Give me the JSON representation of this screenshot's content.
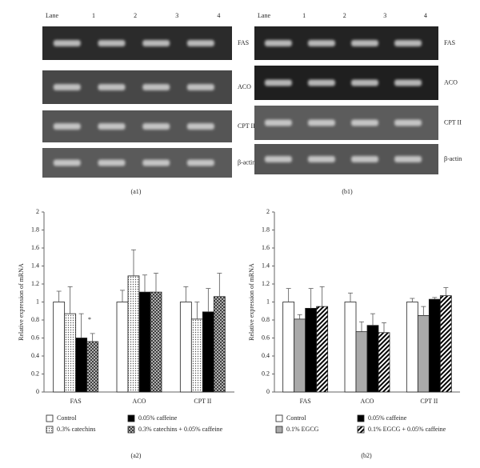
{
  "gels": [
    {
      "label": "(a1)",
      "lane_header": "Lane",
      "lanes": [
        "1",
        "2",
        "3",
        "4"
      ],
      "genes": [
        "FAS",
        "ACO",
        "CPT II",
        "β-actin"
      ]
    },
    {
      "label": "(b1)",
      "lane_header": "Lane",
      "lanes": [
        "1",
        "2",
        "3",
        "4"
      ],
      "genes": [
        "FAS",
        "ACO",
        "CPT II",
        "β-actin"
      ]
    }
  ],
  "chart_data": [
    {
      "type": "bar",
      "label": "(a2)",
      "y_label": "Relative expression of mRNA",
      "categories": [
        "FAS",
        "ACO",
        "CPT II"
      ],
      "ylim": [
        0,
        2
      ],
      "yticks": [
        0,
        0.2,
        0.4,
        0.6,
        0.8,
        1,
        1.2,
        1.4,
        1.6,
        1.8,
        2
      ],
      "annotations": [
        {
          "text": "*"
        }
      ],
      "series": [
        {
          "name": "Control",
          "color": "#ffffff",
          "pattern": "none",
          "values": [
            1.0,
            1.0,
            1.0
          ],
          "errors": [
            0.12,
            0.13,
            0.17
          ]
        },
        {
          "name": "0.3% catechins",
          "color": "#ffffff",
          "pattern": "dots",
          "values": [
            0.87,
            1.29,
            0.81
          ],
          "errors": [
            0.3,
            0.29,
            0.19
          ]
        },
        {
          "name": "0.05% caffeine",
          "color": "#000000",
          "pattern": "none",
          "values": [
            0.6,
            1.11,
            0.89
          ],
          "errors": [
            0.27,
            0.19,
            0.26
          ]
        },
        {
          "name": "0.3% catechins + 0.05% caffeine",
          "color": "#555555",
          "pattern": "crosshatch",
          "values": [
            0.56,
            1.11,
            1.06
          ],
          "errors": [
            0.09,
            0.21,
            0.26
          ]
        }
      ]
    },
    {
      "type": "bar",
      "label": "(b2)",
      "y_label": "Relative expression of mRNA",
      "categories": [
        "FAS",
        "ACO",
        "CPT II"
      ],
      "ylim": [
        0,
        2
      ],
      "yticks": [
        0,
        0.2,
        0.4,
        0.6,
        0.8,
        1,
        1.2,
        1.4,
        1.6,
        1.8,
        2
      ],
      "series": [
        {
          "name": "Control",
          "color": "#ffffff",
          "pattern": "none",
          "values": [
            1.0,
            1.0,
            1.0
          ],
          "errors": [
            0.15,
            0.1,
            0.04
          ]
        },
        {
          "name": "0.1% EGCG",
          "color": "#aaaaaa",
          "pattern": "none",
          "values": [
            0.81,
            0.67,
            0.85
          ],
          "errors": [
            0.05,
            0.11,
            0.1
          ]
        },
        {
          "name": "0.05% caffeine",
          "color": "#000000",
          "pattern": "none",
          "values": [
            0.93,
            0.74,
            1.03
          ],
          "errors": [
            0.22,
            0.13,
            0.02
          ]
        },
        {
          "name": "0.1% EGCG + 0.05% caffeine",
          "color": "#000000",
          "pattern": "diagonal",
          "values": [
            0.95,
            0.66,
            1.07
          ],
          "errors": [
            0.22,
            0.11,
            0.09
          ]
        }
      ]
    }
  ]
}
